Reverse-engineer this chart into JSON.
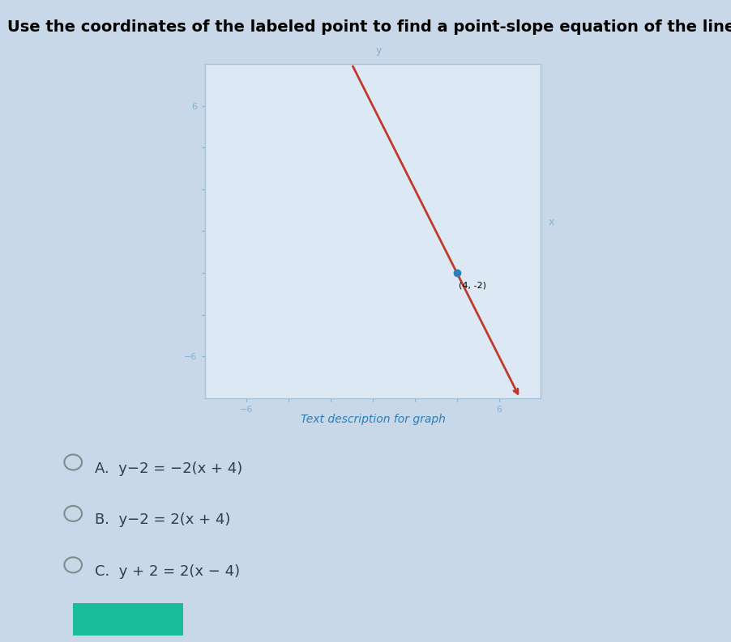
{
  "title": "Use the coordinates of the labeled point to find a point-slope equation of the line.",
  "graph_xlim": [
    -8,
    8
  ],
  "graph_ylim": [
    -8,
    8
  ],
  "graph_xticks": [
    -6,
    -4,
    -2,
    0,
    2,
    4,
    6
  ],
  "graph_yticks": [
    -6,
    -4,
    -2,
    0,
    2,
    4,
    6
  ],
  "line_slope": -2,
  "labeled_point": [
    4,
    -2
  ],
  "labeled_point_text": "(4, -2)",
  "line_color": "#c0392b",
  "point_color": "#2980b9",
  "axis_color": "#7fb3d3",
  "graph_bg": "#dce9f5",
  "outer_bg": "#c8d8e8",
  "text_desc": "Text description for graph",
  "text_desc_color": "#2980b9",
  "choices": [
    "A.  y−2 = −2(x + 4)",
    "B.  y−2 = 2(x + 4)",
    "C.  y + 2 = 2(x − 4)"
  ],
  "choices_color": "#2c3e50",
  "title_fontsize": 14,
  "choice_fontsize": 13
}
